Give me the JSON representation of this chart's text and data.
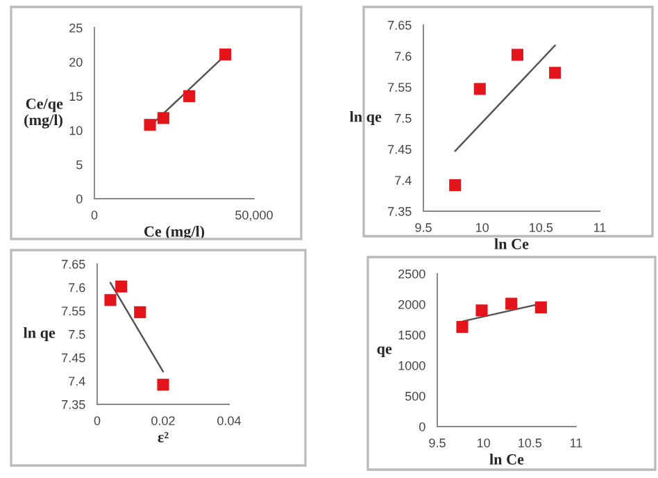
{
  "chart_data": [
    {
      "type": "scatter",
      "xlabel": "Ce (mg/l)",
      "ylabel": "Ce/qe\n(mg/l)",
      "xlim": [
        0,
        50000
      ],
      "xticks": [
        0,
        {
          "value": 50000,
          "label": "50,000"
        }
      ],
      "ylim": [
        0,
        25
      ],
      "yticks": [
        0,
        5,
        10,
        15,
        20,
        25
      ],
      "grid": false,
      "series": [
        {
          "color": "#e3151a",
          "marker": "square",
          "x": [
            17400,
            21600,
            29700,
            41000
          ],
          "values": [
            10.8,
            11.8,
            15.0,
            21.1
          ]
        },
        {
          "type": "line",
          "color": "#555555",
          "marker": "none",
          "x": [
            17400,
            41000
          ],
          "values": [
            10.6,
            21.0
          ]
        }
      ]
    },
    {
      "type": "scatter",
      "xlabel": "ln Ce",
      "ylabel": "ln qe",
      "xlim": [
        9.5,
        11
      ],
      "xticks": [
        9.5,
        10,
        10.5,
        11
      ],
      "ylim": [
        7.35,
        7.65
      ],
      "yticks": [
        7.35,
        7.4,
        7.45,
        7.5,
        7.55,
        7.6,
        7.65
      ],
      "grid": false,
      "series": [
        {
          "color": "#e3151a",
          "marker": "square",
          "x": [
            9.77,
            9.98,
            10.3,
            10.62
          ],
          "values": [
            7.392,
            7.547,
            7.602,
            7.573
          ]
        },
        {
          "type": "line",
          "color": "#555555",
          "marker": "none",
          "x": [
            9.77,
            10.62
          ],
          "values": [
            7.447,
            7.617
          ]
        }
      ]
    },
    {
      "type": "scatter",
      "xlabel": "ε²",
      "ylabel": "ln qe",
      "xlim": [
        0,
        0.04
      ],
      "xticks": [
        0,
        0.02,
        0.04
      ],
      "ylim": [
        7.35,
        7.65
      ],
      "yticks": [
        7.35,
        7.4,
        7.45,
        7.5,
        7.55,
        7.6,
        7.65
      ],
      "grid": false,
      "series": [
        {
          "color": "#e3151a",
          "marker": "square",
          "x": [
            0.004,
            0.0073,
            0.013,
            0.02
          ],
          "values": [
            7.573,
            7.602,
            7.547,
            7.392
          ]
        },
        {
          "type": "line",
          "color": "#555555",
          "marker": "none",
          "x": [
            0.004,
            0.02
          ],
          "values": [
            7.61,
            7.42
          ]
        }
      ]
    },
    {
      "type": "scatter",
      "xlabel": "ln Ce",
      "ylabel": "qe",
      "xlim": [
        9.5,
        11
      ],
      "xticks": [
        9.5,
        10,
        10.5,
        11
      ],
      "ylim": [
        0,
        2500
      ],
      "yticks": [
        0,
        500,
        1000,
        1500,
        2000,
        2500
      ],
      "grid": false,
      "series": [
        {
          "color": "#e3151a",
          "marker": "square",
          "x": [
            9.77,
            9.98,
            10.3,
            10.62
          ],
          "values": [
            1630,
            1900,
            2010,
            1950
          ]
        },
        {
          "type": "line",
          "color": "#555555",
          "marker": "none",
          "x": [
            9.77,
            10.62
          ],
          "values": [
            1720,
            2010
          ]
        }
      ]
    }
  ]
}
